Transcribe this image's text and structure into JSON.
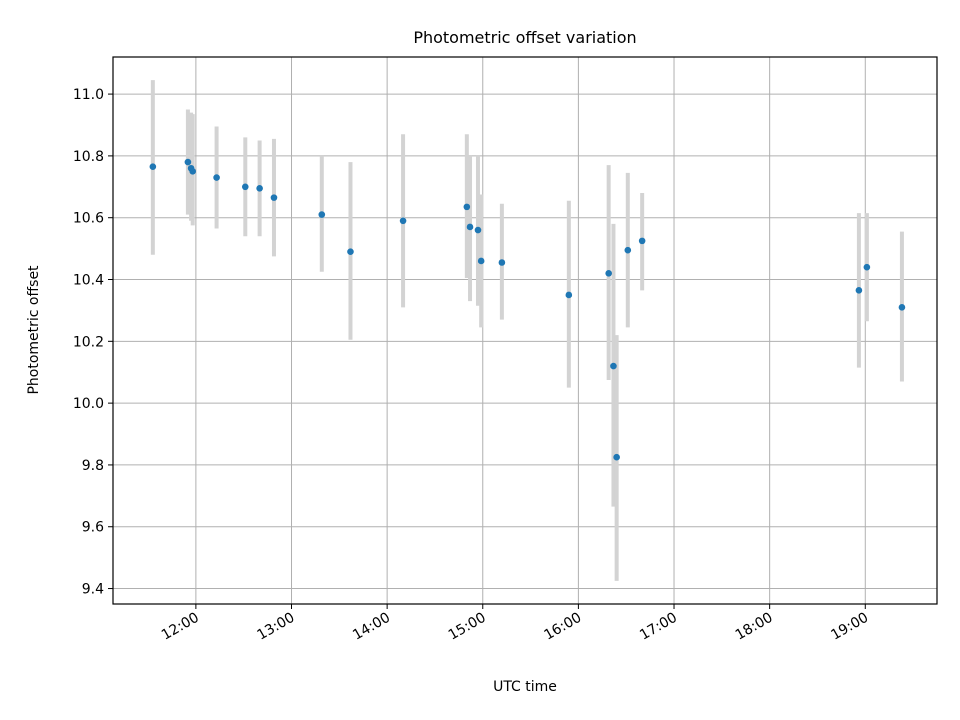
{
  "chart_data": {
    "type": "scatter",
    "title": "Photometric offset variation",
    "xlabel": "UTC time",
    "ylabel": "Photometric offset",
    "x_axis": {
      "kind": "time",
      "min": "11:08",
      "max": "19:45",
      "ticks": [
        "12:00",
        "13:00",
        "14:00",
        "15:00",
        "16:00",
        "17:00",
        "18:00",
        "19:00"
      ]
    },
    "y_axis": {
      "min": 9.35,
      "max": 11.12,
      "ticks": [
        "9.4",
        "9.6",
        "9.8",
        "10.0",
        "10.2",
        "10.4",
        "10.6",
        "10.8",
        "11.0"
      ]
    },
    "grid": true,
    "marker_color": "#1f77b4",
    "errorbar_color": "#d3d3d3",
    "points": [
      {
        "x": "11:33",
        "y": 10.765,
        "lo": 10.48,
        "hi": 11.045
      },
      {
        "x": "11:55",
        "y": 10.78,
        "lo": 10.61,
        "hi": 10.95
      },
      {
        "x": "11:57",
        "y": 10.76,
        "lo": 10.59,
        "hi": 10.94
      },
      {
        "x": "11:58",
        "y": 10.75,
        "lo": 10.575,
        "hi": 10.935
      },
      {
        "x": "12:13",
        "y": 10.73,
        "lo": 10.565,
        "hi": 10.895
      },
      {
        "x": "12:31",
        "y": 10.7,
        "lo": 10.54,
        "hi": 10.86
      },
      {
        "x": "12:40",
        "y": 10.695,
        "lo": 10.54,
        "hi": 10.85
      },
      {
        "x": "12:49",
        "y": 10.665,
        "lo": 10.475,
        "hi": 10.855
      },
      {
        "x": "13:19",
        "y": 10.61,
        "lo": 10.425,
        "hi": 10.8
      },
      {
        "x": "13:37",
        "y": 10.49,
        "lo": 10.205,
        "hi": 10.78
      },
      {
        "x": "14:10",
        "y": 10.59,
        "lo": 10.31,
        "hi": 10.87
      },
      {
        "x": "14:50",
        "y": 10.635,
        "lo": 10.405,
        "hi": 10.87
      },
      {
        "x": "14:52",
        "y": 10.57,
        "lo": 10.33,
        "hi": 10.8
      },
      {
        "x": "14:57",
        "y": 10.56,
        "lo": 10.315,
        "hi": 10.8
      },
      {
        "x": "14:59",
        "y": 10.46,
        "lo": 10.245,
        "hi": 10.675
      },
      {
        "x": "15:12",
        "y": 10.455,
        "lo": 10.27,
        "hi": 10.645
      },
      {
        "x": "15:54",
        "y": 10.35,
        "lo": 10.05,
        "hi": 10.655
      },
      {
        "x": "16:19",
        "y": 10.42,
        "lo": 10.075,
        "hi": 10.77
      },
      {
        "x": "16:22",
        "y": 10.12,
        "lo": 9.665,
        "hi": 10.58
      },
      {
        "x": "16:24",
        "y": 9.825,
        "lo": 9.425,
        "hi": 10.22
      },
      {
        "x": "16:31",
        "y": 10.495,
        "lo": 10.245,
        "hi": 10.745
      },
      {
        "x": "16:40",
        "y": 10.525,
        "lo": 10.365,
        "hi": 10.68
      },
      {
        "x": "18:56",
        "y": 10.365,
        "lo": 10.115,
        "hi": 10.615
      },
      {
        "x": "19:01",
        "y": 10.44,
        "lo": 10.265,
        "hi": 10.615
      },
      {
        "x": "19:23",
        "y": 10.31,
        "lo": 10.07,
        "hi": 10.555
      }
    ]
  }
}
